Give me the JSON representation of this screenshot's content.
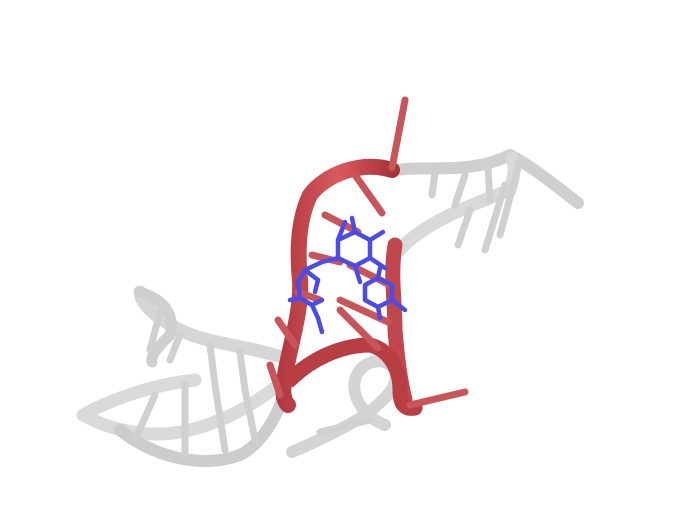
{
  "scene": {
    "subject": "rna-molecule-ribbon-rendering",
    "background_color": "#ffffff",
    "backbone_color": "#d8d8d8",
    "highlight_color": "#c8454a",
    "ligand_color": "#4a4ae0"
  }
}
